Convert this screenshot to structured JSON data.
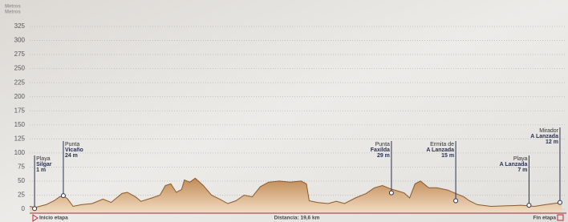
{
  "chart_data": {
    "type": "area",
    "y_axis_titles": [
      "Metros",
      "Metros"
    ],
    "x_label": "Distancia: 19,6 km",
    "start_label": "Inicio etapa",
    "end_label": "Fin etapa",
    "xlim": [
      0,
      19.6
    ],
    "ylim": [
      0,
      325
    ],
    "yticks": [
      0,
      25,
      50,
      75,
      100,
      125,
      150,
      175,
      200,
      225,
      250,
      275,
      300,
      325
    ],
    "grid": true,
    "series": [
      {
        "color": "#8a5a2b",
        "x": [
          0.0,
          0.2,
          0.6,
          0.9,
          1.1,
          1.25,
          1.4,
          1.6,
          1.9,
          2.3,
          2.7,
          3.0,
          3.4,
          3.6,
          3.9,
          4.1,
          4.5,
          4.8,
          5.0,
          5.2,
          5.4,
          5.6,
          5.7,
          5.9,
          6.1,
          6.4,
          6.7,
          7.0,
          7.3,
          7.6,
          7.9,
          8.2,
          8.5,
          8.8,
          9.2,
          9.6,
          10.0,
          10.2,
          10.3,
          10.6,
          11.0,
          11.3,
          11.6,
          12.0,
          12.4,
          12.7,
          13.0,
          13.3,
          13.6,
          13.8,
          14.0,
          14.2,
          14.4,
          14.7,
          15.0,
          15.4,
          15.7,
          16.0,
          16.2,
          16.5,
          17.0,
          17.6,
          18.1,
          18.6,
          19.0,
          19.6
        ],
        "values": [
          5,
          3,
          8,
          15,
          22,
          24,
          18,
          5,
          8,
          10,
          18,
          12,
          28,
          30,
          22,
          14,
          20,
          25,
          42,
          45,
          30,
          35,
          52,
          48,
          55,
          42,
          25,
          18,
          10,
          15,
          25,
          22,
          40,
          48,
          50,
          48,
          50,
          45,
          15,
          12,
          10,
          14,
          10,
          20,
          28,
          38,
          42,
          36,
          32,
          29,
          20,
          45,
          50,
          38,
          38,
          34,
          28,
          22,
          15,
          8,
          5,
          6,
          7,
          5,
          8,
          12
        ]
      }
    ],
    "points": [
      {
        "name": "Playa",
        "place": "Silgar",
        "x": 0.18,
        "value": 1,
        "value_label": "1 m"
      },
      {
        "name": "Punta",
        "place": "Vicaño",
        "x": 1.24,
        "value": 24,
        "value_label": "24 m"
      },
      {
        "name": "Punta",
        "place": "Faxilda",
        "x": 13.33,
        "value": 29,
        "value_label": "29 m"
      },
      {
        "name": "Ermita de",
        "place": "A Lanzada",
        "x": 15.7,
        "value": 15,
        "value_label": "15 m"
      },
      {
        "name": "Playa",
        "place": "A Lanzada",
        "x": 18.4,
        "value": 7,
        "value_label": "7 m"
      },
      {
        "name": "Mirador",
        "place": "A Lanzada",
        "x": 19.54,
        "value": 12,
        "value_label": "12 m"
      }
    ]
  }
}
